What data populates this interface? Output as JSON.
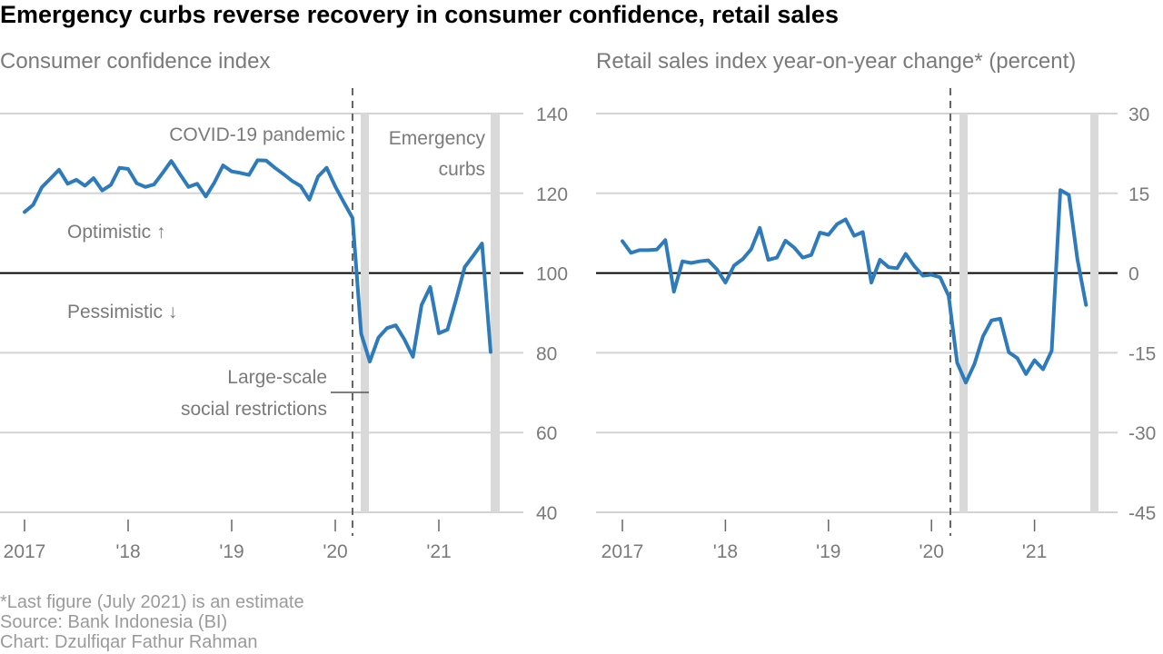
{
  "title": "Emergency curbs reverse recovery in consumer confidence, retail sales",
  "colors": {
    "line": "#2e7bbc",
    "shade": "#d9d9d9",
    "grid": "#d3d3d3",
    "text": "#7a7a7a",
    "baseline": "#000000",
    "note": "#9a9a9a"
  },
  "notes": {
    "estimate": "*Last figure (July 2021) is an estimate",
    "source": "Source: Bank Indonesia (BI)",
    "credit": "Chart: Dzulfiqar Fathur Rahman"
  },
  "chart_data": [
    {
      "type": "line",
      "subtitle": "Consumer confidence index",
      "x_ticks": [
        "2017",
        "'18",
        "'19",
        "'20",
        "'21"
      ],
      "y_ticks": [
        140,
        120,
        100,
        80,
        60,
        40
      ],
      "ylim": [
        40,
        140
      ],
      "baseline": 100,
      "grid": true,
      "x_start": "2017-01",
      "annotations": {
        "pandemic": "COVID-19 pandemic",
        "emergency": [
          "Emergency",
          "curbs"
        ],
        "optimistic": "Optimistic ↑",
        "pessimistic": "Pessimistic ↓",
        "psbb": [
          "Large-scale",
          "social restrictions"
        ]
      },
      "values": [
        115.3,
        117.1,
        121.5,
        123.7,
        125.9,
        122.4,
        123.4,
        121.9,
        123.8,
        120.7,
        122.1,
        126.4,
        126.1,
        122.5,
        121.6,
        122.2,
        125.1,
        128.1,
        124.8,
        121.6,
        122.4,
        119.2,
        122.7,
        127.0,
        125.5,
        125.1,
        124.6,
        128.3,
        128.2,
        126.4,
        124.8,
        123.1,
        121.8,
        118.4,
        124.2,
        126.4,
        121.7,
        117.7,
        113.8,
        84.8,
        77.8,
        83.8,
        86.2,
        86.9,
        83.4,
        79.0,
        92.0,
        96.5,
        84.9,
        85.8,
        93.4,
        101.5,
        104.4,
        107.4,
        80.2
      ]
    },
    {
      "type": "line",
      "subtitle": "Retail sales index year-on-year change* (percent)",
      "x_ticks": [
        "2017",
        "'18",
        "'19",
        "'20",
        "'21"
      ],
      "y_ticks": [
        30,
        15,
        0,
        -15,
        -30,
        -45
      ],
      "ylim": [
        -45,
        30
      ],
      "baseline": 0,
      "grid": true,
      "x_start": "2017-01",
      "values": [
        6.0,
        3.8,
        4.3,
        4.3,
        4.4,
        6.2,
        -3.5,
        2.2,
        1.9,
        2.2,
        2.4,
        0.7,
        -1.8,
        1.4,
        2.6,
        4.5,
        8.5,
        2.5,
        2.9,
        6.1,
        4.8,
        2.9,
        3.4,
        7.6,
        7.2,
        9.2,
        10.1,
        7.0,
        7.7,
        -1.8,
        2.5,
        1.1,
        0.9,
        3.6,
        1.3,
        -0.5,
        -0.3,
        -0.8,
        -4.3,
        -16.9,
        -20.6,
        -17.1,
        -11.9,
        -8.9,
        -8.6,
        -14.9,
        -16.0,
        -19.0,
        -16.4,
        -18.1,
        -14.6,
        15.6,
        14.7,
        2.6,
        -6.0
      ]
    }
  ]
}
